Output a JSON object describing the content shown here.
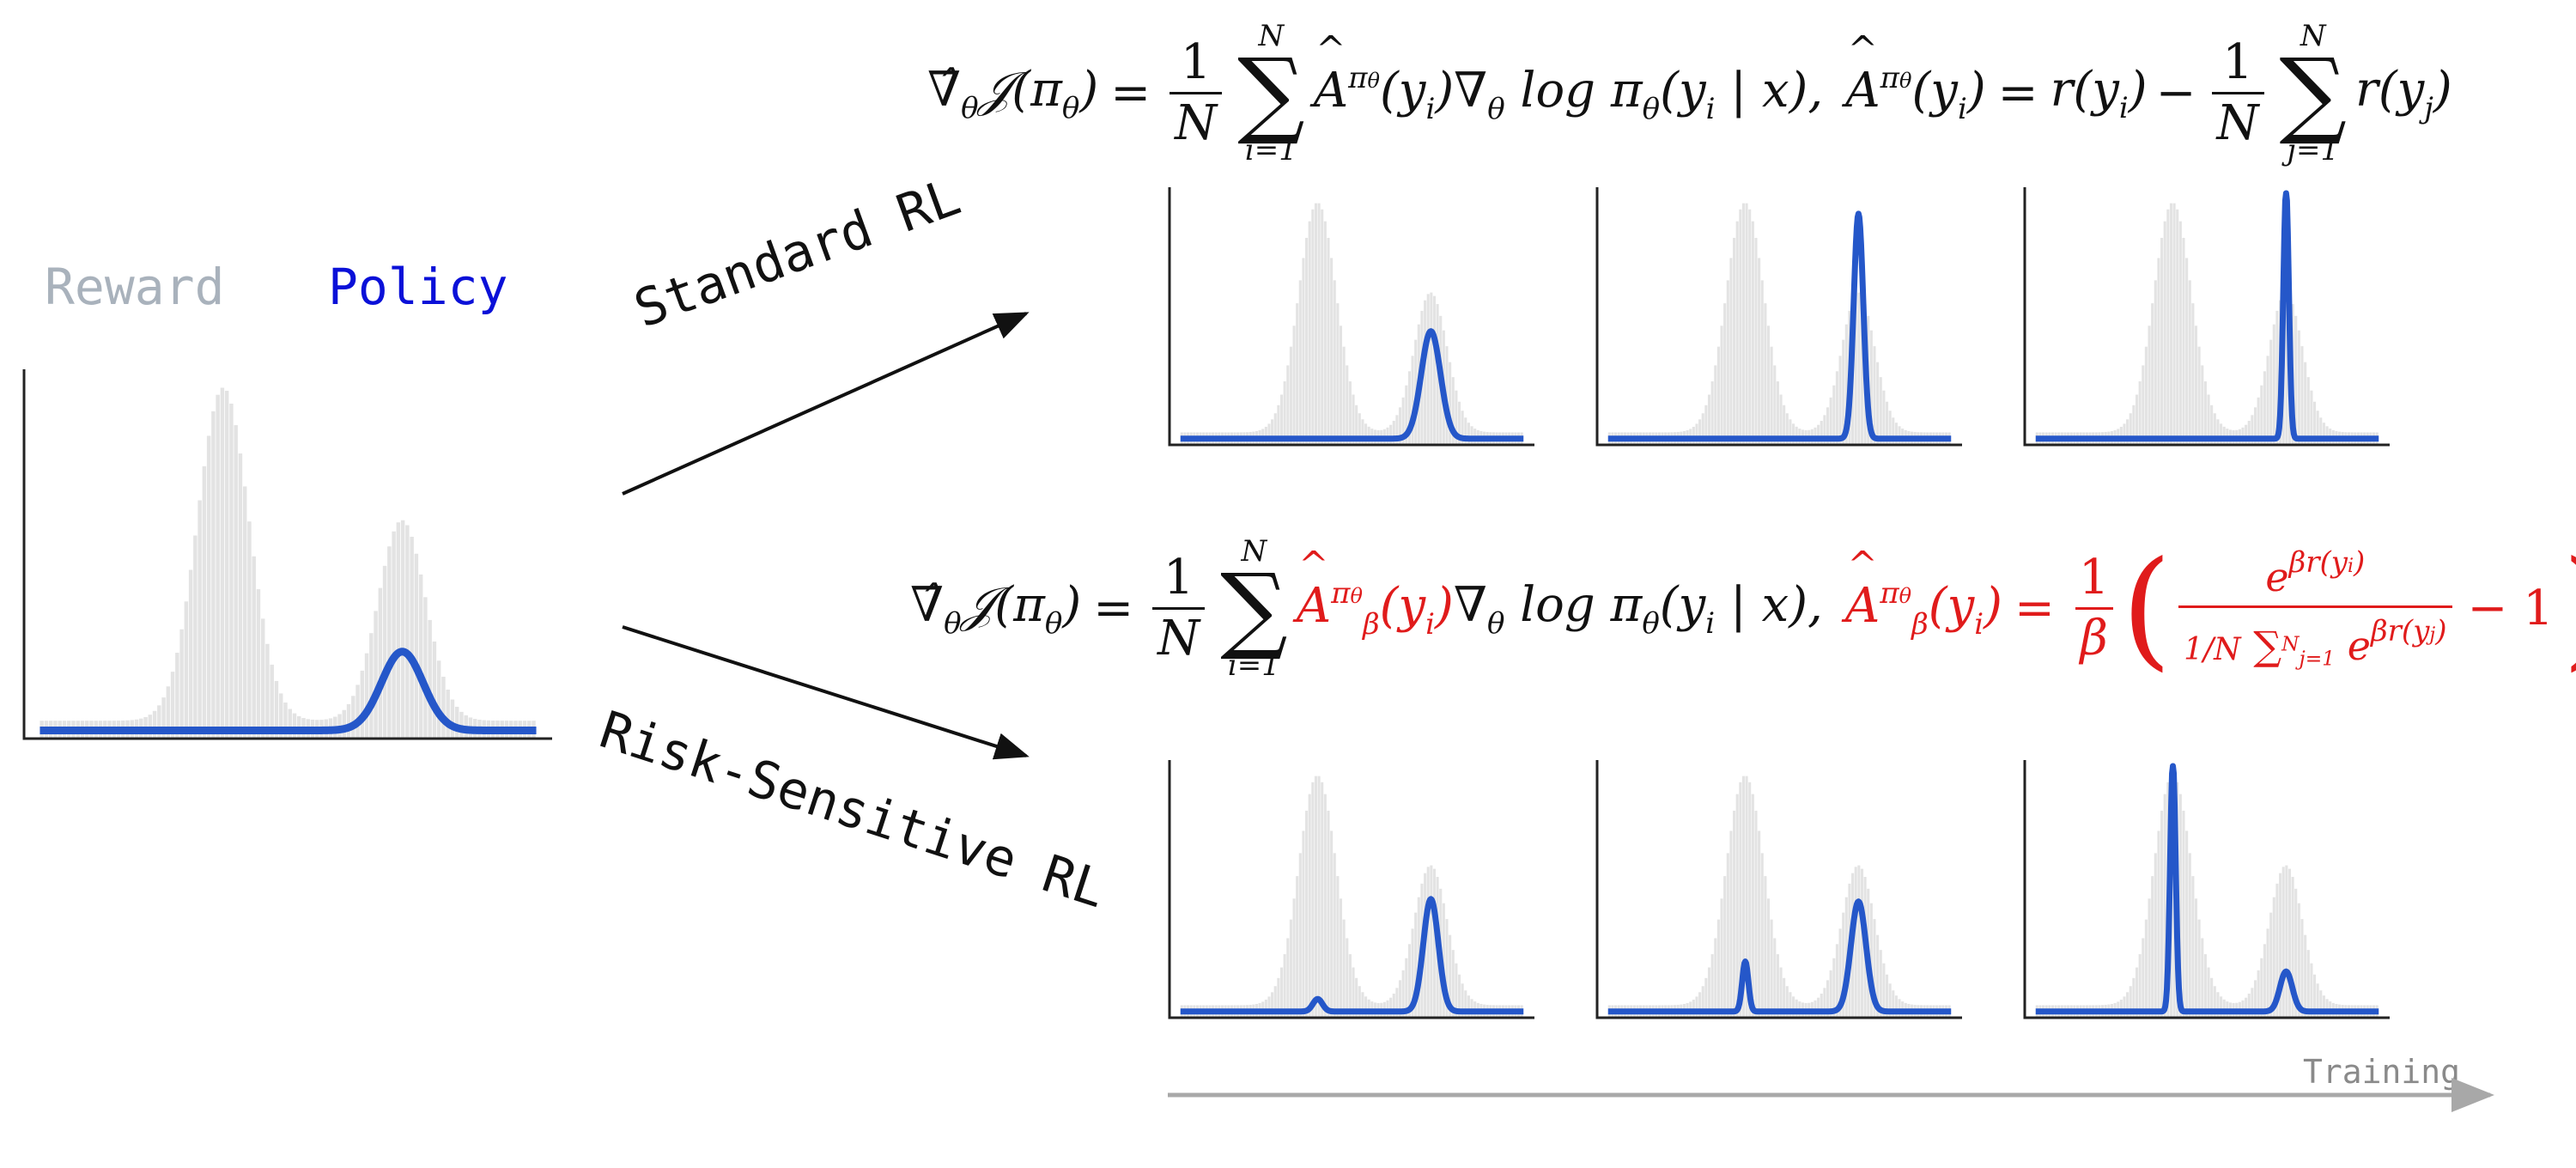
{
  "legend": {
    "reward_label": "Reward",
    "policy_label": "Policy",
    "reward_color": "#a9b2bc",
    "policy_color": "#0a10d8"
  },
  "colors": {
    "policy_curve": "#2557c9",
    "reward_bars": "#e3e3e3",
    "axis": "#222222",
    "arrow": "#111111",
    "highlight_red": "#e01b1b",
    "training_arrow": "#a8a8a8"
  },
  "branches": {
    "standard": "Standard RL",
    "risk_sensitive": "Risk-Sensitive RL"
  },
  "training_label": "Training",
  "equations": {
    "standard": {
      "grad": "∇̂θ𝒥(πθ)",
      "equals": "=",
      "one": "1",
      "N": "N",
      "sum_upper": "N",
      "sum_lower": "i=1",
      "term": "Â^πθ(yi)∇θ log πθ(yi | x),",
      "adv": "Â^πθ(yi) = r(yi) −",
      "sum2_lower": "j=1",
      "tail": "r(yj)"
    },
    "risk": {
      "grad": "∇̂θ𝒥(πθ)",
      "equals": "=",
      "one": "1",
      "N": "N",
      "sum_upper": "N",
      "sum_lower": "i=1",
      "term_red": "Â^πθ_β(yi)",
      "term_black": "∇θ log πθ(yi | x),",
      "adv_lhs": "Â^πθ_β(yi) =",
      "beta": "β",
      "inner_num": "e^{βr(yi)}",
      "inner_den": "1/N Σ_{j=1}^N e^{βr(yj)}",
      "minus_one": "− 1"
    }
  },
  "chart_data": [
    {
      "type": "area",
      "panel": "initial",
      "reward": [
        {
          "mode": 0.37,
          "height": 0.93,
          "width": 0.052
        },
        {
          "mode": 0.73,
          "height": 0.56,
          "width": 0.048
        }
      ],
      "policy": [
        {
          "mode": 0.73,
          "height": 0.22,
          "width": 0.042
        }
      ]
    },
    {
      "type": "area",
      "panel": "standard-1",
      "reward": [
        {
          "mode": 0.4,
          "height": 0.92,
          "width": 0.055
        },
        {
          "mode": 0.73,
          "height": 0.56,
          "width": 0.048
        }
      ],
      "policy": [
        {
          "mode": 0.73,
          "height": 0.43,
          "width": 0.028
        }
      ]
    },
    {
      "type": "area",
      "panel": "standard-2",
      "reward": [
        {
          "mode": 0.4,
          "height": 0.92,
          "width": 0.055
        },
        {
          "mode": 0.73,
          "height": 0.56,
          "width": 0.048
        }
      ],
      "policy": [
        {
          "mode": 0.73,
          "height": 0.9,
          "width": 0.014
        }
      ]
    },
    {
      "type": "area",
      "panel": "standard-3",
      "reward": [
        {
          "mode": 0.4,
          "height": 0.92,
          "width": 0.055
        },
        {
          "mode": 0.73,
          "height": 0.56,
          "width": 0.048
        }
      ],
      "policy": [
        {
          "mode": 0.73,
          "height": 1.0,
          "width": 0.008
        }
      ]
    },
    {
      "type": "area",
      "panel": "risk-1",
      "reward": [
        {
          "mode": 0.4,
          "height": 0.92,
          "width": 0.055
        },
        {
          "mode": 0.73,
          "height": 0.56,
          "width": 0.048
        }
      ],
      "policy": [
        {
          "mode": 0.4,
          "height": 0.05,
          "width": 0.014
        },
        {
          "mode": 0.73,
          "height": 0.45,
          "width": 0.022
        }
      ]
    },
    {
      "type": "area",
      "panel": "risk-2",
      "reward": [
        {
          "mode": 0.4,
          "height": 0.92,
          "width": 0.055
        },
        {
          "mode": 0.73,
          "height": 0.56,
          "width": 0.048
        }
      ],
      "policy": [
        {
          "mode": 0.4,
          "height": 0.2,
          "width": 0.009
        },
        {
          "mode": 0.73,
          "height": 0.44,
          "width": 0.022
        }
      ]
    },
    {
      "type": "area",
      "panel": "risk-3",
      "reward": [
        {
          "mode": 0.4,
          "height": 0.92,
          "width": 0.055
        },
        {
          "mode": 0.73,
          "height": 0.56,
          "width": 0.048
        }
      ],
      "policy": [
        {
          "mode": 0.4,
          "height": 1.0,
          "width": 0.008
        },
        {
          "mode": 0.73,
          "height": 0.16,
          "width": 0.018
        }
      ]
    }
  ]
}
